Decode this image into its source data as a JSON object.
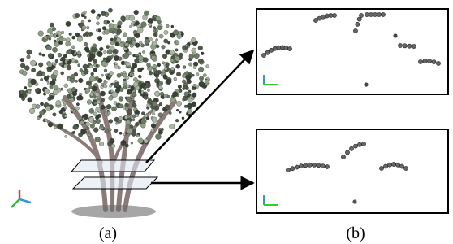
{
  "labels": {
    "a": "(a)",
    "b": "(b)"
  }
}
